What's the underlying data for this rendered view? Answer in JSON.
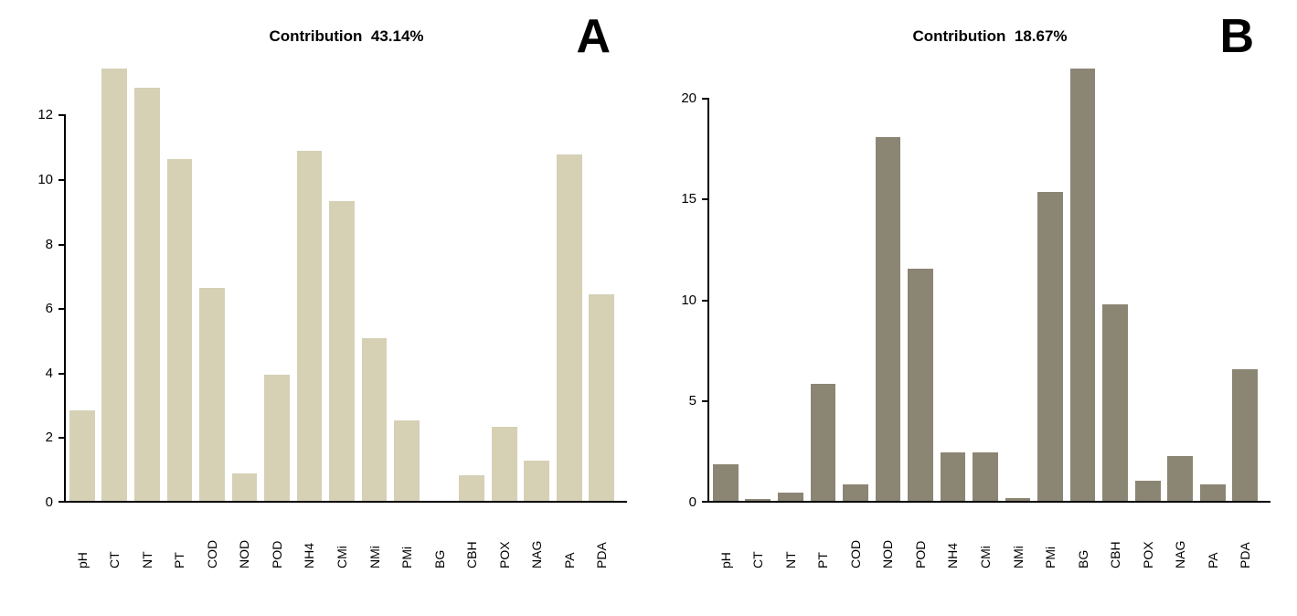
{
  "page": {
    "background": "#ffffff"
  },
  "chart_data": [
    {
      "type": "bar",
      "panel_label": "A",
      "title": "Contribution  43.14%",
      "bar_color": "#d6d0b5",
      "axis_color": "#000000",
      "legend": "none",
      "grid": false,
      "xlabel": "",
      "ylabel": "",
      "ylim": [
        0,
        13.6
      ],
      "yticks": [
        0,
        2,
        4,
        6,
        8,
        10,
        12
      ],
      "categories": [
        "pH",
        "CT",
        "NT",
        "PT",
        "COD",
        "NOD",
        "POD",
        "NH4",
        "CMi",
        "NMi",
        "PMi",
        "BG",
        "CBH",
        "POX",
        "NAG",
        "PA",
        "PDA"
      ],
      "values": [
        2.8,
        13.4,
        12.8,
        10.6,
        6.6,
        0.85,
        3.9,
        10.85,
        9.3,
        5.05,
        2.5,
        0,
        0.8,
        2.3,
        1.25,
        10.75,
        6.4
      ]
    },
    {
      "type": "bar",
      "panel_label": "B",
      "title": "Contribution  18.67%",
      "bar_color": "#8b8573",
      "axis_color": "#000000",
      "legend": "none",
      "grid": false,
      "xlabel": "",
      "ylabel": "",
      "ylim": [
        0,
        21.7
      ],
      "yticks": [
        0,
        5,
        10,
        15,
        20
      ],
      "categories": [
        "pH",
        "CT",
        "NT",
        "PT",
        "COD",
        "NOD",
        "POD",
        "NH4",
        "CMi",
        "NMi",
        "PMi",
        "BG",
        "CBH",
        "POX",
        "NAG",
        "PA",
        "PDA"
      ],
      "values": [
        1.8,
        0.1,
        0.4,
        5.8,
        0.8,
        18.0,
        11.5,
        2.4,
        2.4,
        0.15,
        15.3,
        21.4,
        9.7,
        1.0,
        2.2,
        0.8,
        6.5
      ]
    }
  ]
}
